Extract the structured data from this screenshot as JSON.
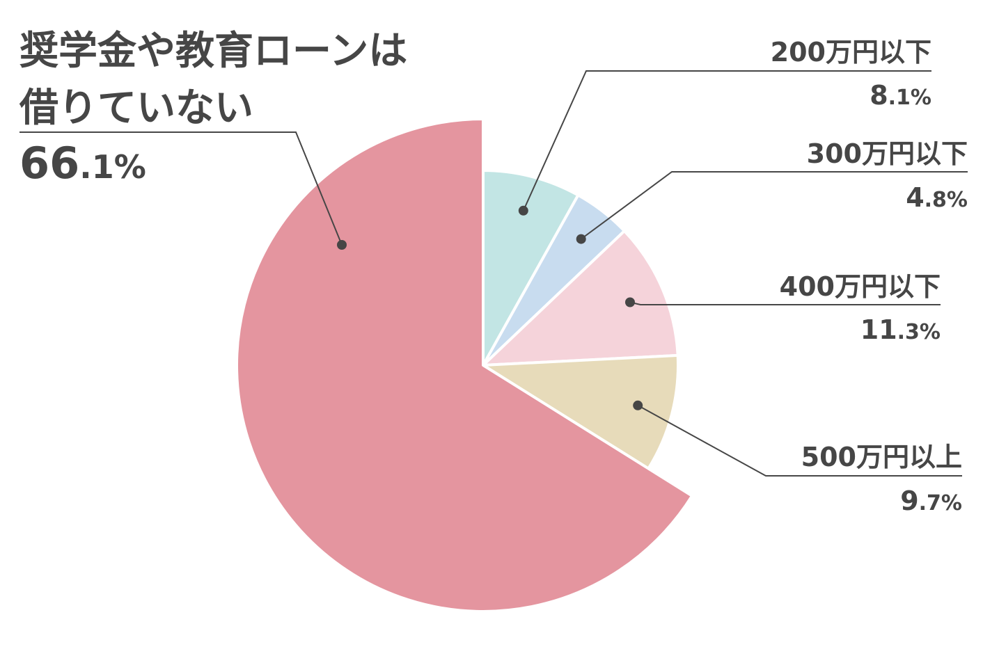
{
  "chart_data": {
    "type": "pie",
    "title": "",
    "start": "12 o'clock",
    "direction": "clockwise",
    "slices": [
      {
        "label": "200万円以下",
        "value": 8.1,
        "display_int": "8",
        "display_dec": ".1",
        "unit": "%",
        "color": "#c2e5e4"
      },
      {
        "label": "300万円以下",
        "value": 4.8,
        "display_int": "4",
        "display_dec": ".8",
        "unit": "%",
        "color": "#c8dcef"
      },
      {
        "label": "400万円以下",
        "value": 11.3,
        "display_int": "11",
        "display_dec": ".3",
        "unit": "%",
        "color": "#f5d3da"
      },
      {
        "label": "500万円以上",
        "value": 9.7,
        "display_int": "9",
        "display_dec": ".7",
        "unit": "%",
        "color": "#e7dbba"
      },
      {
        "label": "奨学金や教育ローンは借りていない",
        "label_lines": [
          "奨学金や教育ローンは",
          "借りていない"
        ],
        "value": 66.1,
        "display_int": "66",
        "display_dec": ".1",
        "unit": "%",
        "color": "#e4959f",
        "exploded": true
      }
    ]
  },
  "colors": {
    "text": "#464646",
    "separator": "#ffffff"
  }
}
